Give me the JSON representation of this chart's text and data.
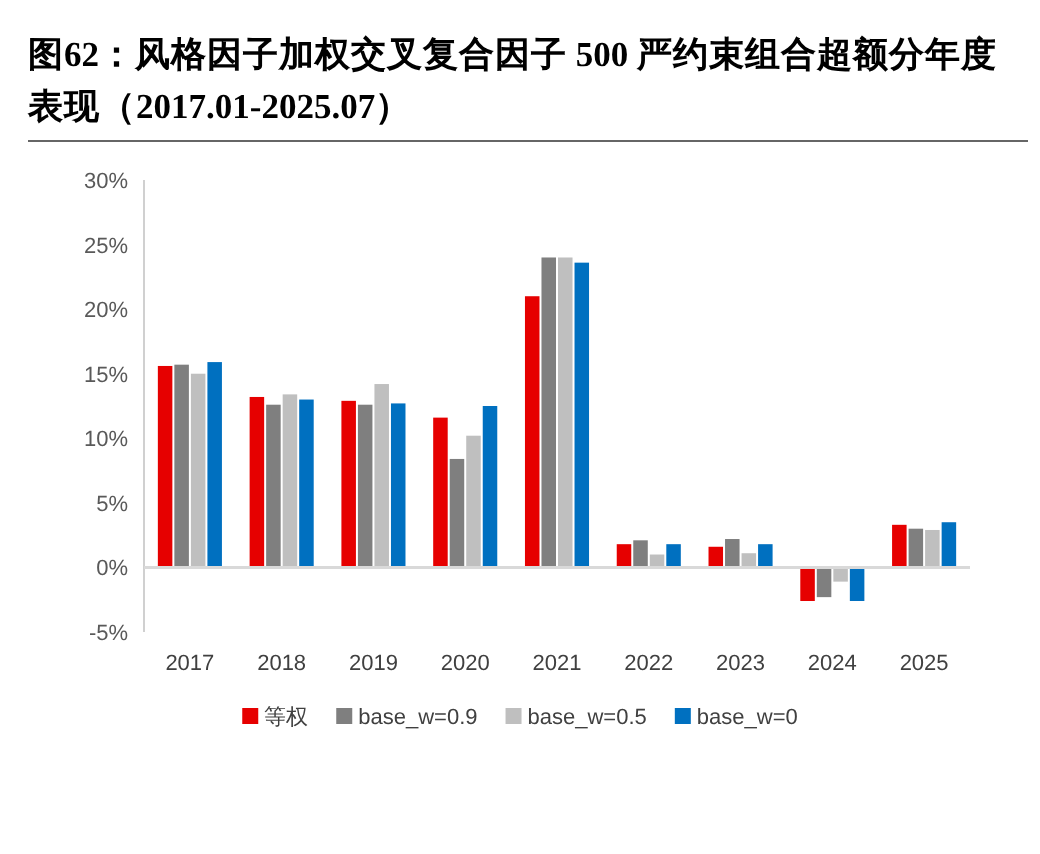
{
  "chart_data": {
    "type": "bar",
    "title": "图62：风格因子加权交叉复合因子 500 严约束组合超额分年度表现（2017.01-2025.07）",
    "categories": [
      "2017",
      "2018",
      "2019",
      "2020",
      "2021",
      "2022",
      "2023",
      "2024",
      "2025"
    ],
    "series": [
      {
        "name": "等权",
        "color": "#e60000",
        "values": [
          15.6,
          13.2,
          12.9,
          11.6,
          21.0,
          1.8,
          1.6,
          -2.6,
          3.3
        ]
      },
      {
        "name": "base_w=0.9",
        "color": "#7f7f7f",
        "values": [
          15.7,
          12.6,
          12.6,
          8.4,
          24.0,
          2.1,
          2.2,
          -2.3,
          3.0
        ]
      },
      {
        "name": "base_w=0.5",
        "color": "#bfbfbf",
        "values": [
          15.0,
          13.4,
          14.2,
          10.2,
          24.0,
          1.0,
          1.1,
          -1.1,
          2.9
        ]
      },
      {
        "name": "base_w=0",
        "color": "#0070c0",
        "values": [
          15.9,
          13.0,
          12.7,
          12.5,
          23.6,
          1.8,
          1.8,
          -2.6,
          3.5
        ]
      }
    ],
    "ylim": [
      -5,
      30
    ],
    "yticks": [
      {
        "value": -5,
        "label": "-5%"
      },
      {
        "value": 0,
        "label": "0%"
      },
      {
        "value": 5,
        "label": "5%"
      },
      {
        "value": 10,
        "label": "10%"
      },
      {
        "value": 15,
        "label": "15%"
      },
      {
        "value": 20,
        "label": "20%"
      },
      {
        "value": 25,
        "label": "25%"
      },
      {
        "value": 30,
        "label": "30%"
      }
    ],
    "legend": "bottom"
  }
}
